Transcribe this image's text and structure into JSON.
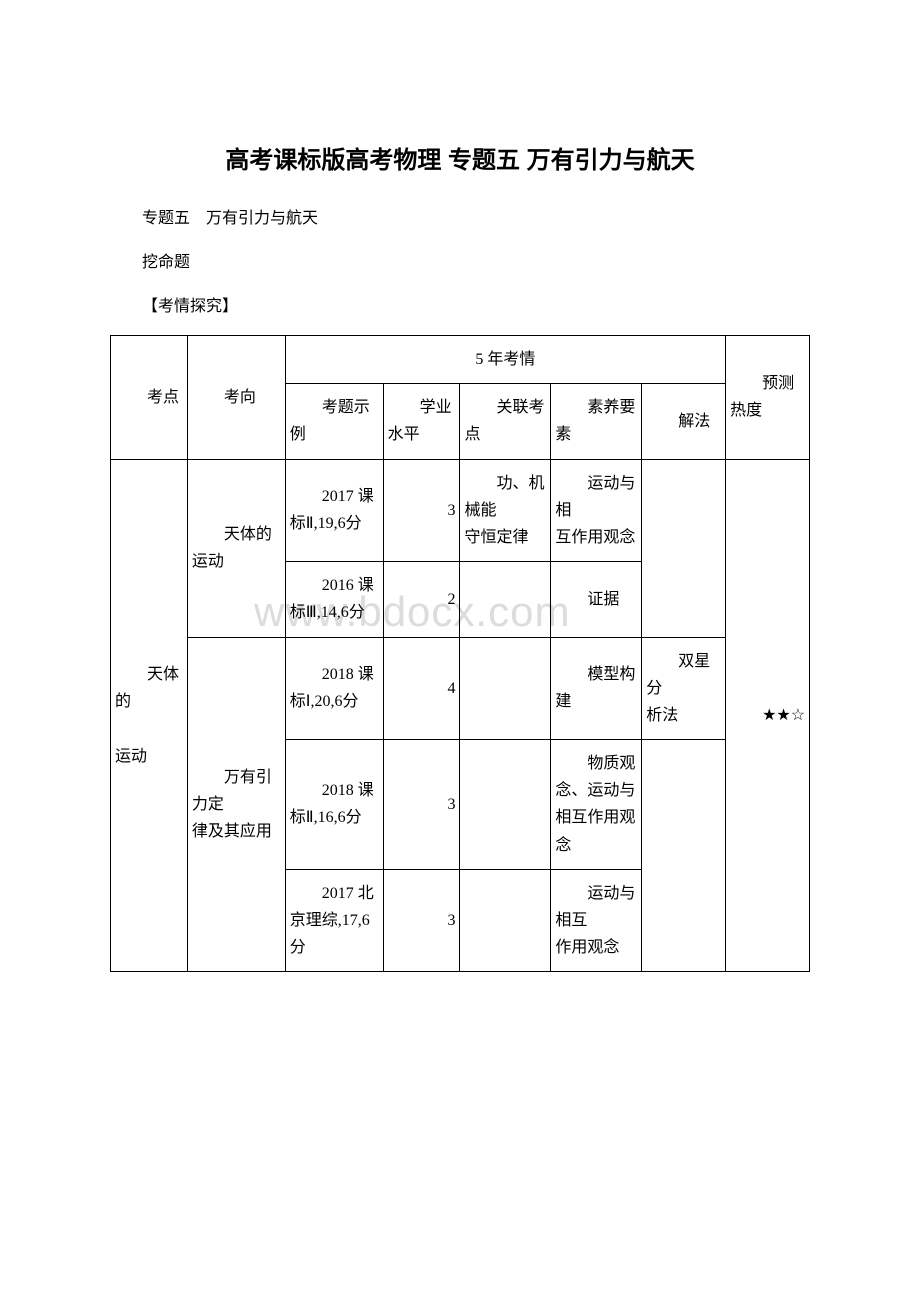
{
  "title": "高考课标版高考物理 专题五 万有引力与航天",
  "paragraphs": [
    "专题五　万有引力与航天",
    "挖命题",
    "【考情探究】"
  ],
  "watermark": "www.bdocx.com",
  "table": {
    "header": {
      "kaodian": "考点",
      "kaoxiang": "考向",
      "five_year": "5 年考情",
      "sub": {
        "c1": "考题示例",
        "c2": "学业水平",
        "c3": "关联考点",
        "c4": "素养要素",
        "c5": "解法"
      },
      "predict": "预测热度"
    },
    "big_kaodian": "天体的\n\n运动",
    "heat_rating": "★★☆",
    "sections": [
      {
        "kaoxiang": "天体的运动",
        "rows": [
          {
            "example": "2017 课标Ⅱ,19,6分",
            "level": "3",
            "related": "功、机械能\n守恒定律",
            "suyang": "运动与相\n互作用观念",
            "method": ""
          },
          {
            "example": "2016 课标Ⅲ,14,6分",
            "level": "2",
            "related": "",
            "suyang": "证据",
            "method": ""
          }
        ]
      },
      {
        "kaoxiang": "万有引力定\n律及其应用",
        "rows": [
          {
            "example": "2018 课标Ⅰ,20,6分",
            "level": "4",
            "related": "",
            "suyang": "模型构建",
            "method": "双星分\n析法"
          },
          {
            "example": "2018 课标Ⅱ,16,6分",
            "level": "3",
            "related": "",
            "suyang": "物质观念、运动与\n相互作用观念",
            "method": ""
          },
          {
            "example": "2017 北京理综,17,6 分",
            "level": "3",
            "related": "",
            "suyang": "运动与相互\n作用观念",
            "method": ""
          }
        ]
      }
    ]
  }
}
